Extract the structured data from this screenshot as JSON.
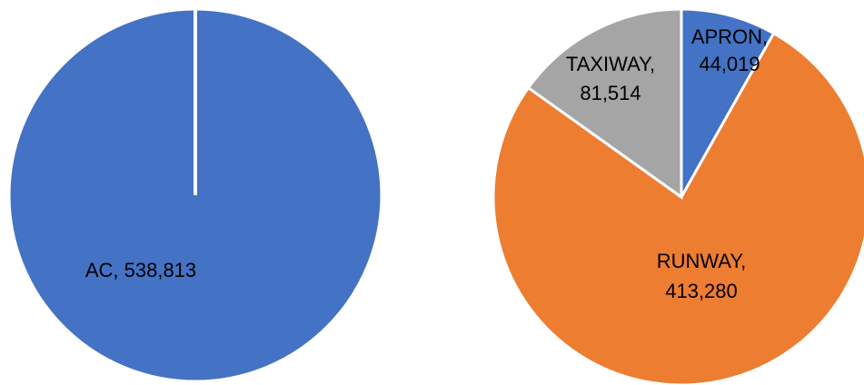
{
  "chart_data": [
    {
      "type": "pie",
      "slices": [
        {
          "label": "AC",
          "value": 538813,
          "value_text": "538,813",
          "color": "#4472C4"
        }
      ]
    },
    {
      "type": "pie",
      "slices": [
        {
          "label": "APRON",
          "value": 44019,
          "value_text": "44,019",
          "color": "#4472C4"
        },
        {
          "label": "RUNWAY",
          "value": 413280,
          "value_text": "413,280",
          "color": "#ED7D31"
        },
        {
          "label": "TAXIWAY",
          "value": 81514,
          "value_text": "81,514",
          "color": "#A5A5A5"
        }
      ]
    }
  ]
}
